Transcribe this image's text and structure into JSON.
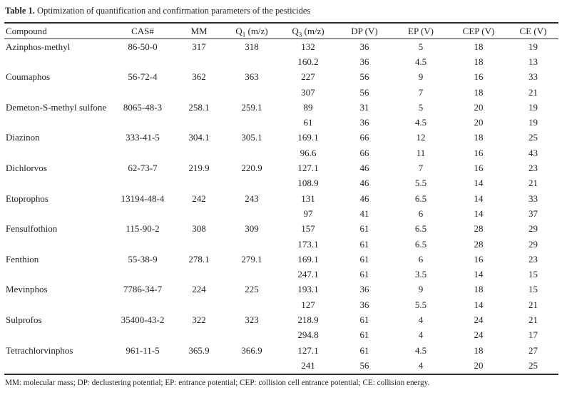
{
  "table": {
    "title_label": "Table 1.",
    "title_text": " Optimization of quantification and confirmation parameters of the pesticides",
    "columns": [
      {
        "label": "Compound"
      },
      {
        "label": "CAS#"
      },
      {
        "label": "MM"
      },
      {
        "label": "Q",
        "sub": "1",
        "suffix": " (m/z)"
      },
      {
        "label": "Q",
        "sub": "3",
        "suffix": " (m/z)"
      },
      {
        "label": "DP (V)"
      },
      {
        "label": "EP (V)"
      },
      {
        "label": "CEP (V)"
      },
      {
        "label": "CE (V)"
      }
    ],
    "compounds": [
      {
        "name": "Azinphos-methyl",
        "cas": "86-50-0",
        "mm": "317",
        "q1": "318",
        "transitions": [
          {
            "q3": "132",
            "dp": "36",
            "ep": "5",
            "cep": "18",
            "ce": "19"
          },
          {
            "q3": "160.2",
            "dp": "36",
            "ep": "4.5",
            "cep": "18",
            "ce": "13"
          }
        ]
      },
      {
        "name": "Coumaphos",
        "cas": "56-72-4",
        "mm": "362",
        "q1": "363",
        "transitions": [
          {
            "q3": "227",
            "dp": "56",
            "ep": "9",
            "cep": "16",
            "ce": "33"
          },
          {
            "q3": "307",
            "dp": "56",
            "ep": "7",
            "cep": "18",
            "ce": "21"
          }
        ]
      },
      {
        "name": "Demeton-S-methyl sulfone",
        "cas": "8065-48-3",
        "mm": "258.1",
        "q1": "259.1",
        "transitions": [
          {
            "q3": "89",
            "dp": "31",
            "ep": "5",
            "cep": "20",
            "ce": "19"
          },
          {
            "q3": "61",
            "dp": "36",
            "ep": "4.5",
            "cep": "20",
            "ce": "19"
          }
        ]
      },
      {
        "name": "Diazinon",
        "cas": "333-41-5",
        "mm": "304.1",
        "q1": "305.1",
        "transitions": [
          {
            "q3": "169.1",
            "dp": "66",
            "ep": "12",
            "cep": "18",
            "ce": "25"
          },
          {
            "q3": "96.6",
            "dp": "66",
            "ep": "11",
            "cep": "16",
            "ce": "43"
          }
        ]
      },
      {
        "name": "Dichlorvos",
        "cas": "62-73-7",
        "mm": "219.9",
        "q1": "220.9",
        "transitions": [
          {
            "q3": "127.1",
            "dp": "46",
            "ep": "7",
            "cep": "16",
            "ce": "23"
          },
          {
            "q3": "108.9",
            "dp": "46",
            "ep": "5.5",
            "cep": "14",
            "ce": "21"
          }
        ]
      },
      {
        "name": "Etoprophos",
        "cas": "13194-48-4",
        "mm": "242",
        "q1": "243",
        "transitions": [
          {
            "q3": "131",
            "dp": "46",
            "ep": "6.5",
            "cep": "14",
            "ce": "33"
          },
          {
            "q3": "97",
            "dp": "41",
            "ep": "6",
            "cep": "14",
            "ce": "37"
          }
        ]
      },
      {
        "name": "Fensulfothion",
        "cas": "115-90-2",
        "mm": "308",
        "q1": "309",
        "transitions": [
          {
            "q3": "157",
            "dp": "61",
            "ep": "6.5",
            "cep": "28",
            "ce": "29"
          },
          {
            "q3": "173.1",
            "dp": "61",
            "ep": "6.5",
            "cep": "28",
            "ce": "29"
          }
        ]
      },
      {
        "name": "Fenthion",
        "cas": "55-38-9",
        "mm": "278.1",
        "q1": "279.1",
        "transitions": [
          {
            "q3": "169.1",
            "dp": "61",
            "ep": "6",
            "cep": "16",
            "ce": "23"
          },
          {
            "q3": "247.1",
            "dp": "61",
            "ep": "3.5",
            "cep": "14",
            "ce": "15"
          }
        ]
      },
      {
        "name": "Mevinphos",
        "cas": "7786-34-7",
        "mm": "224",
        "q1": "225",
        "transitions": [
          {
            "q3": "193.1",
            "dp": "36",
            "ep": "9",
            "cep": "18",
            "ce": "15"
          },
          {
            "q3": "127",
            "dp": "36",
            "ep": "5.5",
            "cep": "14",
            "ce": "21"
          }
        ]
      },
      {
        "name": "Sulprofos",
        "cas": "35400-43-2",
        "mm": "322",
        "q1": "323",
        "transitions": [
          {
            "q3": "218.9",
            "dp": "61",
            "ep": "4",
            "cep": "24",
            "ce": "21"
          },
          {
            "q3": "294.8",
            "dp": "61",
            "ep": "4",
            "cep": "24",
            "ce": "17"
          }
        ]
      },
      {
        "name": "Tetrachlorvinphos",
        "cas": "961-11-5",
        "mm": "365.9",
        "q1": "366.9",
        "transitions": [
          {
            "q3": "127.1",
            "dp": "61",
            "ep": "4.5",
            "cep": "18",
            "ce": "27"
          },
          {
            "q3": "241",
            "dp": "56",
            "ep": "4",
            "cep": "20",
            "ce": "25"
          }
        ]
      }
    ],
    "footnote": "MM: molecular mass; DP: declustering potential; EP: entrance potential; CEP: collision cell entrance potential; CE: collision energy."
  }
}
